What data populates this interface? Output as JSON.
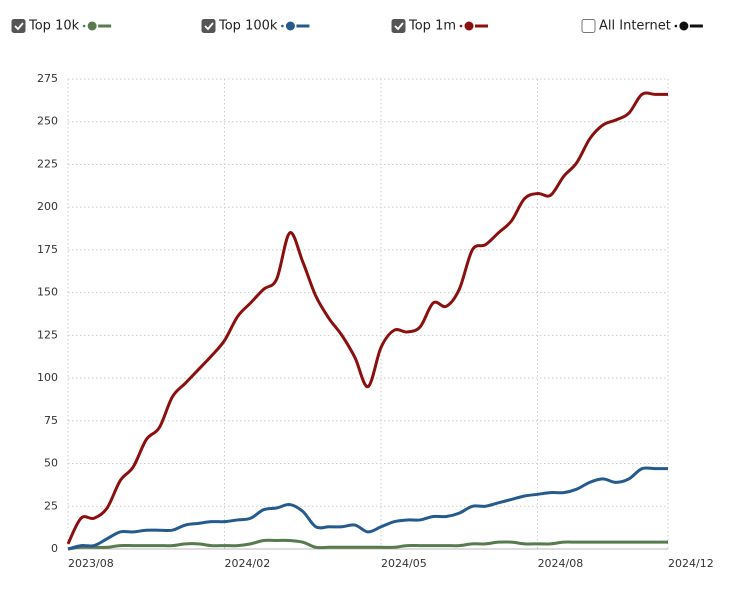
{
  "chart_data": {
    "type": "line",
    "categories": [
      "2023/08",
      null,
      null,
      null,
      null,
      null,
      null,
      null,
      null,
      null,
      null,
      null,
      "2024/02",
      null,
      null,
      null,
      null,
      null,
      null,
      null,
      null,
      null,
      null,
      null,
      "2024/05",
      null,
      null,
      null,
      null,
      null,
      null,
      null,
      null,
      null,
      null,
      null,
      "2024/08",
      null,
      null,
      null,
      null,
      null,
      null,
      null,
      null,
      null,
      "2024/12"
    ],
    "series": [
      {
        "name": "Top 10k",
        "color": "#577a4f",
        "checked": true,
        "values": [
          0,
          1,
          1,
          1,
          2,
          2,
          2,
          2,
          2,
          3,
          3,
          2,
          2,
          2,
          3,
          5,
          5,
          5,
          4,
          1,
          1,
          1,
          1,
          1,
          1,
          1,
          2,
          2,
          2,
          2,
          2,
          3,
          3,
          4,
          4,
          3,
          3,
          3,
          4,
          4,
          4,
          4,
          4,
          4,
          4,
          4,
          4
        ]
      },
      {
        "name": "Top 100k",
        "color": "#245a8d",
        "checked": true,
        "values": [
          0,
          2,
          2,
          6,
          10,
          10,
          11,
          11,
          11,
          14,
          15,
          16,
          16,
          17,
          18,
          23,
          24,
          26,
          22,
          13,
          13,
          13,
          14,
          10,
          13,
          16,
          17,
          17,
          19,
          19,
          21,
          25,
          25,
          27,
          29,
          31,
          32,
          33,
          33,
          35,
          39,
          41,
          39,
          41,
          47,
          47,
          47
        ]
      },
      {
        "name": "Top 1m",
        "color": "#8b0f0f",
        "checked": true,
        "values": [
          3,
          18,
          18,
          24,
          40,
          48,
          64,
          71,
          89,
          97,
          105,
          113,
          122,
          136,
          144,
          152,
          158,
          185,
          168,
          148,
          135,
          125,
          112,
          95,
          118,
          128,
          127,
          130,
          144,
          142,
          152,
          175,
          178,
          185,
          192,
          205,
          208,
          207,
          218,
          226,
          240,
          248,
          251,
          255,
          266,
          266,
          266
        ]
      },
      {
        "name": "All Internet",
        "color": "#111111",
        "checked": false
      }
    ],
    "ylim": [
      0,
      275
    ],
    "yticks": [
      0,
      25,
      50,
      75,
      100,
      125,
      150,
      175,
      200,
      225,
      250,
      275
    ],
    "grid": true
  }
}
